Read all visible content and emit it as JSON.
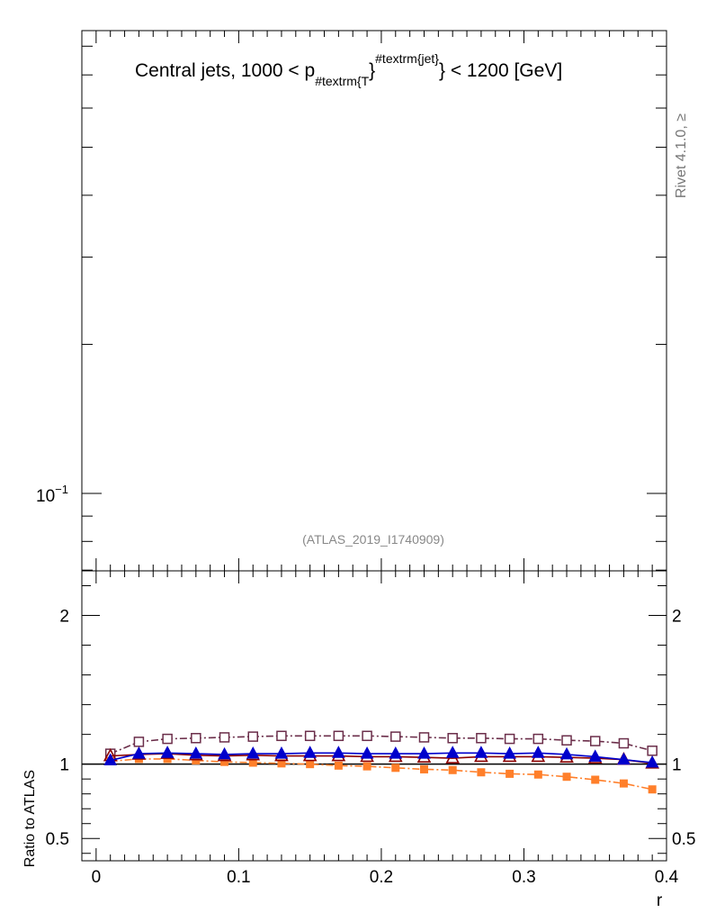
{
  "chart_data": [
    {
      "type": "line",
      "title_parts": {
        "prefix": "Central jets, 1000 < p",
        "sub": "#textrm{T",
        "brace": "}",
        "sup": "#textrm{jet}",
        "suffix": "} < 1200 [GeV]"
      },
      "yscale": "log",
      "tick_label": "10",
      "tick_label_exp": "−1",
      "watermark": "(ATLAS_2019_I1740909)",
      "side_label": "Rivet 4.1.0, ≥"
    },
    {
      "type": "line",
      "xlabel": "r",
      "ylabel": "Ratio to ATLAS",
      "xlim": [
        -0.01,
        0.4
      ],
      "ylim": [
        0.35,
        2.3
      ],
      "x_ticks": [
        "0",
        "0.1",
        "0.2",
        "0.3",
        "0.4"
      ],
      "y_ticks": [
        "0.5",
        "1",
        "2"
      ],
      "x": [
        0.01,
        0.03,
        0.05,
        0.07,
        0.09,
        0.11,
        0.13,
        0.15,
        0.17,
        0.19,
        0.21,
        0.23,
        0.25,
        0.27,
        0.29,
        0.31,
        0.33,
        0.35,
        0.37,
        0.39
      ],
      "series": [
        {
          "name": "open-square",
          "color": "#6b2e4a",
          "marker": "open-square",
          "dash": "8,3,2,3",
          "values": [
            1.07,
            1.15,
            1.17,
            1.175,
            1.18,
            1.185,
            1.19,
            1.19,
            1.19,
            1.19,
            1.185,
            1.18,
            1.175,
            1.175,
            1.17,
            1.17,
            1.16,
            1.155,
            1.14,
            1.09
          ]
        },
        {
          "name": "orange-square",
          "color": "#ff7f2a",
          "marker": "filled-square",
          "dash": "8,3,2,3",
          "values": [
            1.02,
            1.035,
            1.035,
            1.025,
            1.015,
            1.01,
            1.005,
            1.0,
            0.99,
            0.985,
            0.975,
            0.965,
            0.96,
            0.945,
            0.935,
            0.93,
            0.915,
            0.895,
            0.87,
            0.83
          ]
        },
        {
          "name": "open-triangle",
          "color": "#8b0000",
          "marker": "open-triangle",
          "dash": "",
          "values": [
            1.055,
            1.065,
            1.07,
            1.06,
            1.055,
            1.06,
            1.055,
            1.055,
            1.055,
            1.05,
            1.05,
            1.045,
            1.04,
            1.05,
            1.05,
            1.05,
            1.045,
            1.04,
            1.03,
            1.005
          ]
        },
        {
          "name": "blue-triangle",
          "color": "#0000cc",
          "marker": "filled-triangle",
          "dash": "",
          "values": [
            1.025,
            1.07,
            1.075,
            1.07,
            1.065,
            1.07,
            1.07,
            1.075,
            1.075,
            1.07,
            1.07,
            1.07,
            1.075,
            1.075,
            1.07,
            1.075,
            1.065,
            1.05,
            1.03,
            1.01
          ]
        }
      ]
    }
  ]
}
